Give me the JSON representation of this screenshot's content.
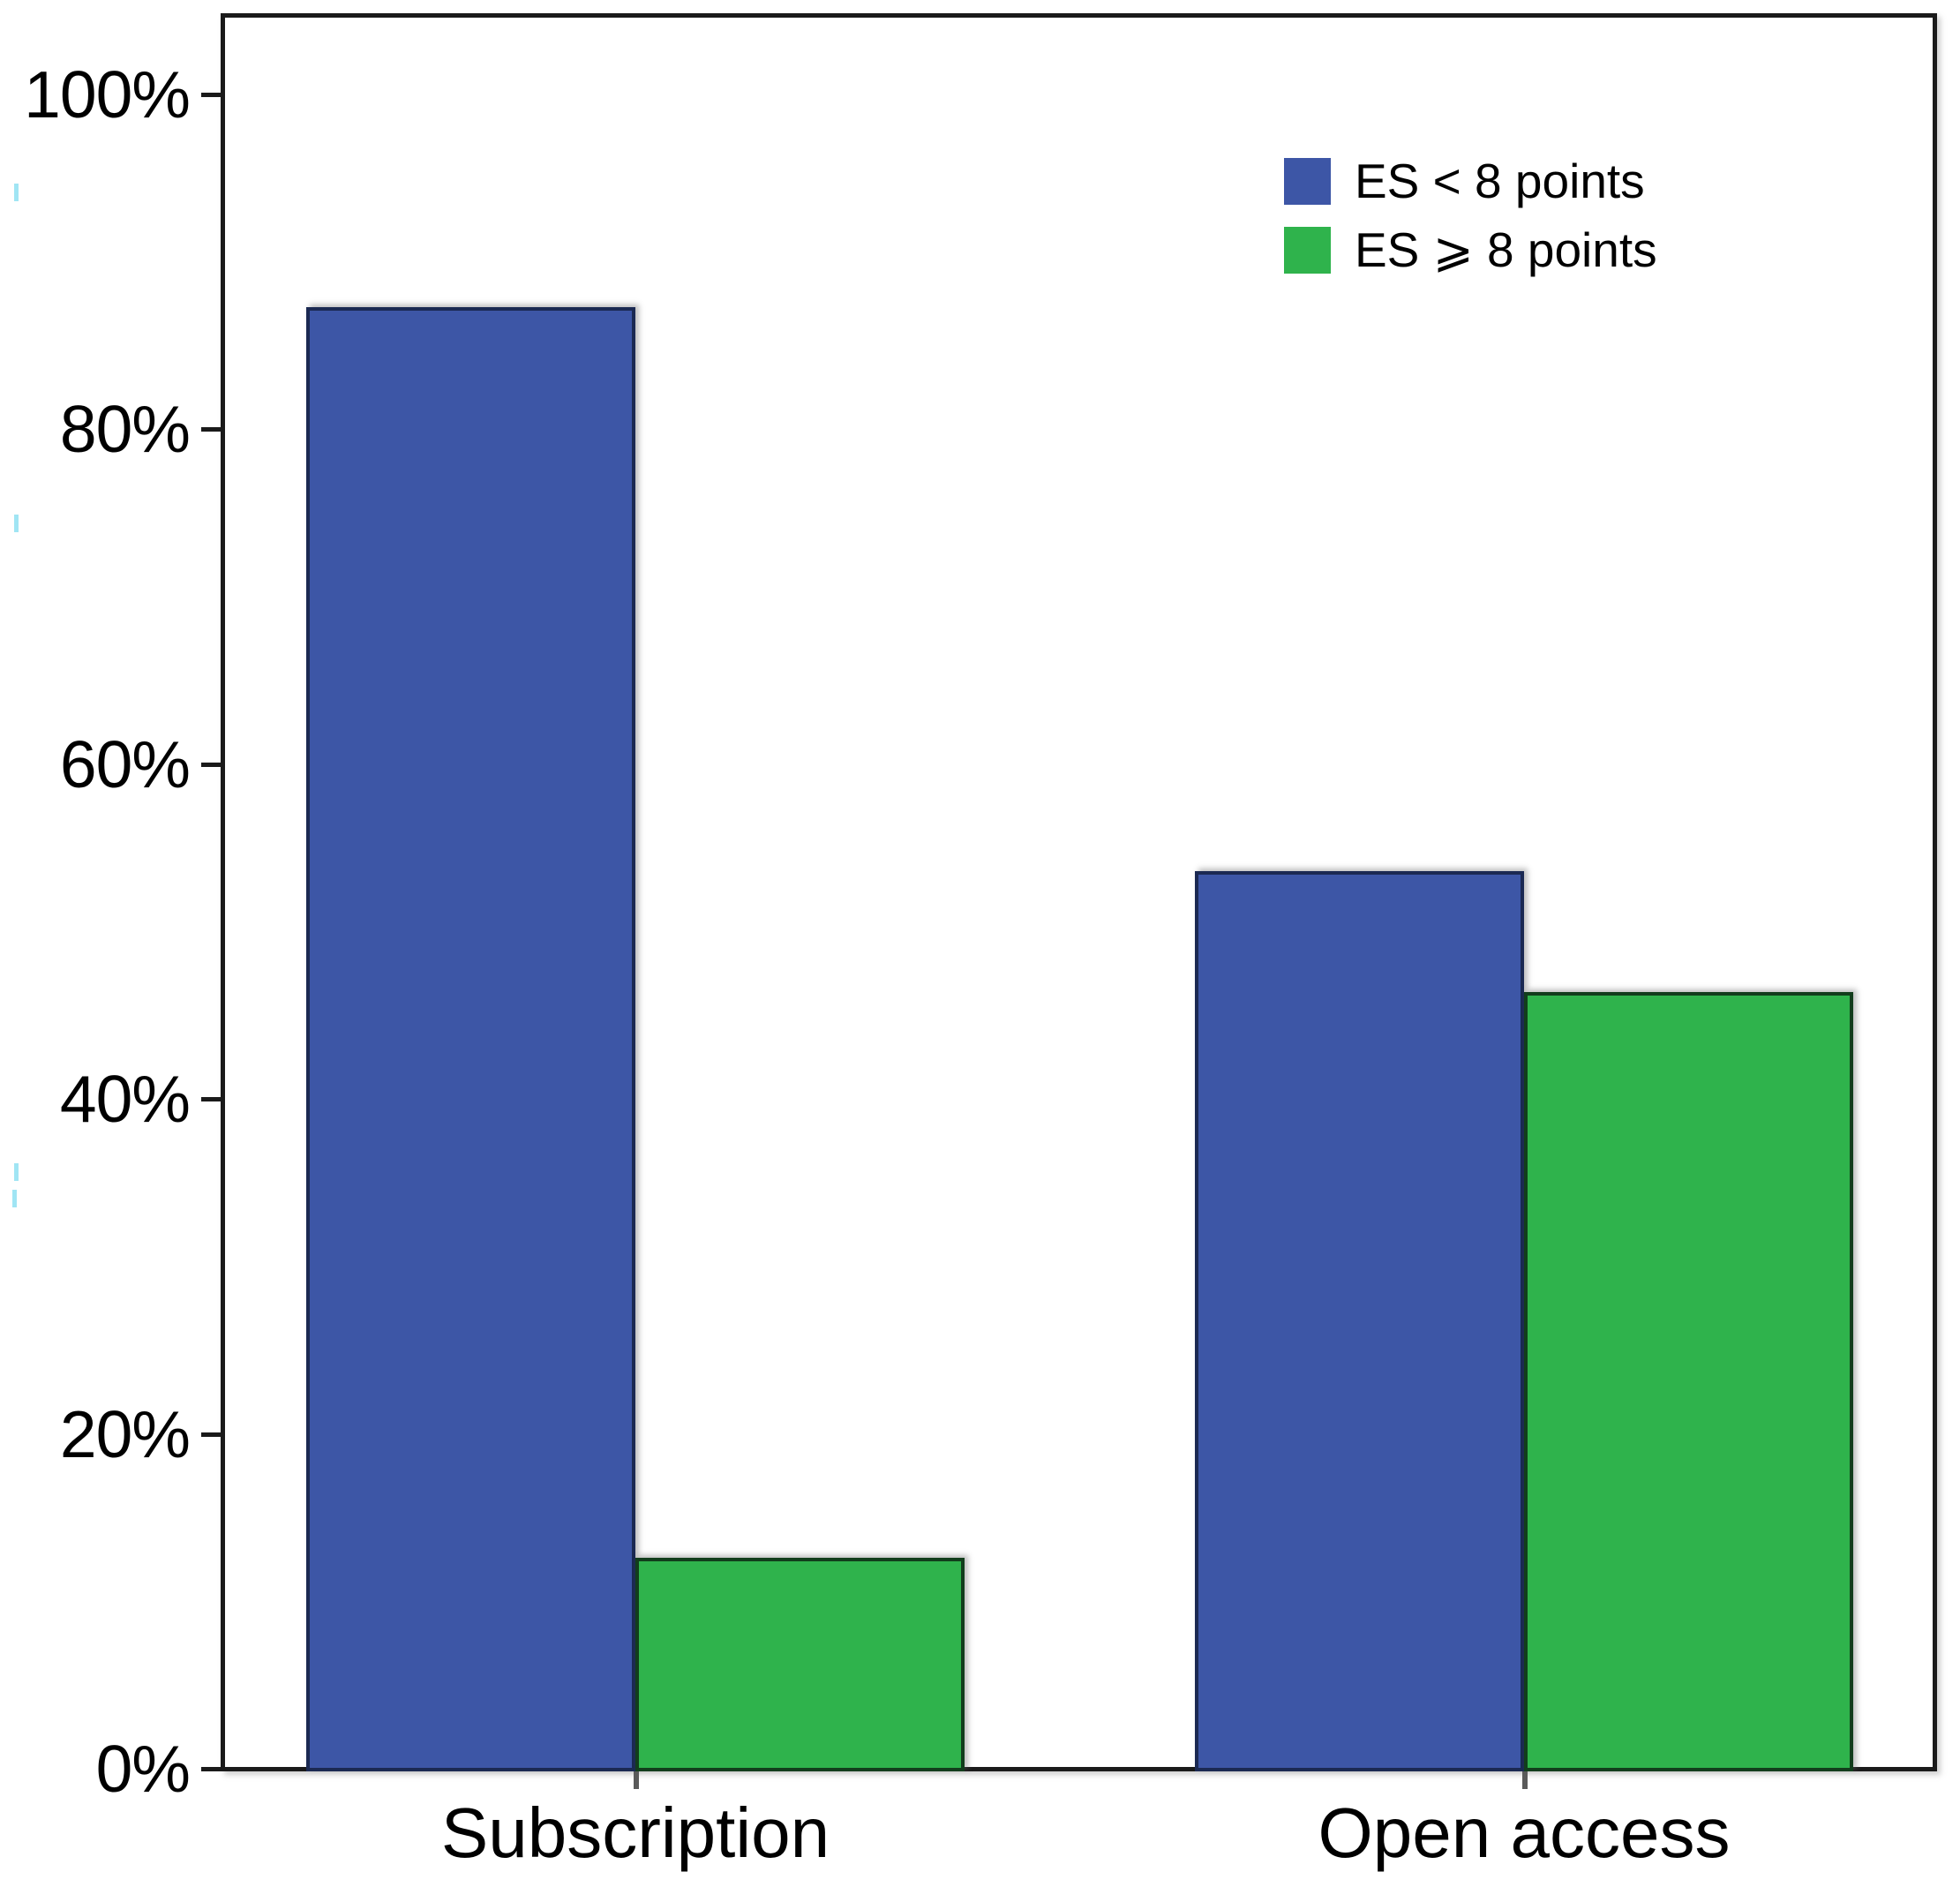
{
  "chart_data": {
    "type": "bar",
    "title": "",
    "xlabel": "",
    "ylabel": "",
    "categories": [
      "Subscription",
      "Open access"
    ],
    "series": [
      {
        "name": "ES < 8 points",
        "color": "#3D56A6",
        "border_color": "#1B2952",
        "values": [
          87.3,
          53.6
        ]
      },
      {
        "name": "ES ⩾ 8 points",
        "color": "#2FB34C",
        "border_color": "#123D1C",
        "values": [
          12.6,
          46.4
        ]
      }
    ],
    "ylim": [
      0,
      100
    ],
    "yticks": [
      {
        "value": 0,
        "label": "0%"
      },
      {
        "value": 20,
        "label": "20%"
      },
      {
        "value": 40,
        "label": "40%"
      },
      {
        "value": 60,
        "label": "60%"
      },
      {
        "value": 80,
        "label": "80%"
      },
      {
        "value": 100,
        "label": "100%"
      }
    ],
    "grid": false,
    "legend_position": "upper-right",
    "axis_color": "#1a1a1a",
    "background_color": "#ffffff"
  }
}
